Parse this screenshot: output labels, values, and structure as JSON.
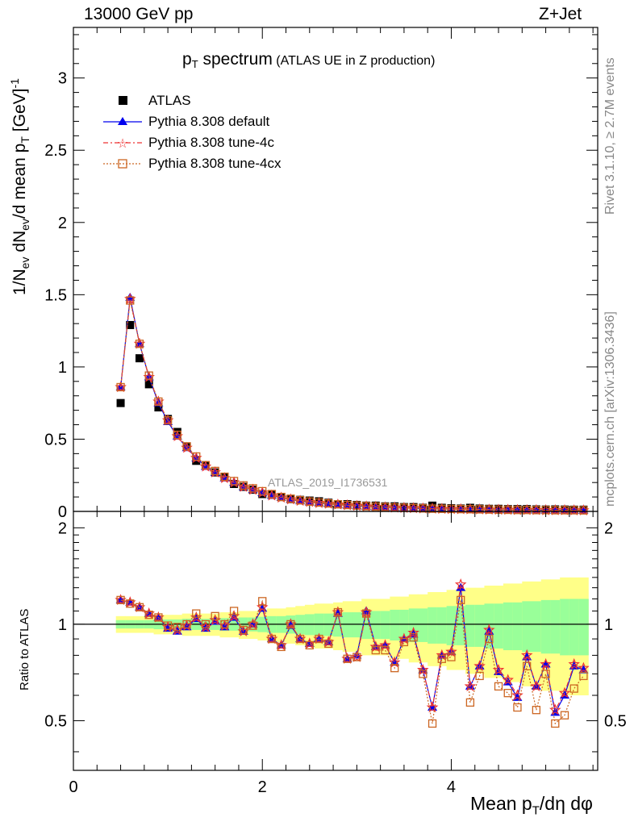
{
  "header": {
    "left": "13000 GeV pp",
    "right": "Z+Jet"
  },
  "side_labels": {
    "rivet": "Rivet 3.1.10, ≥ 2.7M events",
    "mcplots": "mcplots.cern.ch [arXiv:1306.3436]"
  },
  "plot_title": {
    "main": "p",
    "sub": "T",
    "rest": " spectrum",
    "paren": "(ATLAS UE in Z production)"
  },
  "watermark": "ATLAS_2019_I1736531",
  "y_title_main": {
    "a": "1/N",
    "b": "ev",
    "c": " dN",
    "d": "ev",
    "e": "/d mean p",
    "f": "T",
    "g": " [GeV]",
    "h": "-1"
  },
  "y_title_ratio": "Ratio to ATLAS",
  "x_title": {
    "a": "Mean p",
    "b": "T",
    "c": "/dη dφ"
  },
  "legend": [
    {
      "key": "atlas",
      "label": "ATLAS"
    },
    {
      "key": "def",
      "label": "Pythia 8.308 default"
    },
    {
      "key": "t4c",
      "label": "Pythia 8.308 tune-4c"
    },
    {
      "key": "t4cx",
      "label": "Pythia 8.308 tune-4cx"
    }
  ],
  "colors": {
    "atlas": "#000000",
    "def": "#0000ee",
    "t4c": "#ee3333",
    "t4cx": "#cc6622",
    "band_inner": "#99ff99",
    "band_outer": "#ffff88"
  },
  "chart_data": {
    "type": "line",
    "x": [
      0.5,
      0.6,
      0.7,
      0.8,
      0.9,
      1.0,
      1.1,
      1.2,
      1.3,
      1.4,
      1.5,
      1.6,
      1.7,
      1.8,
      1.9,
      2.0,
      2.1,
      2.2,
      2.3,
      2.4,
      2.5,
      2.6,
      2.7,
      2.8,
      2.9,
      3.0,
      3.1,
      3.2,
      3.3,
      3.4,
      3.5,
      3.6,
      3.7,
      3.8,
      3.9,
      4.0,
      4.1,
      4.2,
      4.3,
      4.4,
      4.5,
      4.6,
      4.7,
      4.8,
      4.9,
      5.0,
      5.1,
      5.2,
      5.3,
      5.4
    ],
    "xlim": [
      0,
      5.55
    ],
    "xticks": [
      "0",
      "2",
      "4"
    ],
    "main": {
      "ylim": [
        0,
        3.35
      ],
      "yticks": [
        "0",
        "0.5",
        "1",
        "1.5",
        "2",
        "2.5",
        "3"
      ],
      "series": [
        {
          "name": "ATLAS",
          "values": [
            0.75,
            1.29,
            1.06,
            0.88,
            0.72,
            0.64,
            0.55,
            0.45,
            0.35,
            0.32,
            0.27,
            0.24,
            0.19,
            0.17,
            0.15,
            0.12,
            0.115,
            0.1,
            0.085,
            0.08,
            0.075,
            0.07,
            0.06,
            0.05,
            0.05,
            0.045,
            0.04,
            0.04,
            0.035,
            0.035,
            0.03,
            0.03,
            0.025,
            0.04,
            0.025,
            0.022,
            0.02,
            0.025,
            0.02,
            0.018,
            0.018,
            0.016,
            0.016,
            0.016,
            0.014,
            0.013,
            0.014,
            0.013,
            0.012,
            0.012
          ]
        },
        {
          "name": "Pythia 8.308 default",
          "values": [
            0.86,
            1.48,
            1.16,
            0.93,
            0.75,
            0.62,
            0.52,
            0.44,
            0.37,
            0.31,
            0.27,
            0.23,
            0.2,
            0.17,
            0.15,
            0.13,
            0.11,
            0.095,
            0.082,
            0.072,
            0.064,
            0.058,
            0.052,
            0.047,
            0.042,
            0.038,
            0.034,
            0.031,
            0.028,
            0.026,
            0.024,
            0.022,
            0.02,
            0.018,
            0.017,
            0.016,
            0.015,
            0.014,
            0.013,
            0.012,
            0.011,
            0.01,
            0.01,
            0.009,
            0.009,
            0.008,
            0.008,
            0.008,
            0.007,
            0.007
          ]
        },
        {
          "name": "Pythia 8.308 tune-4c",
          "values": [
            0.86,
            1.47,
            1.16,
            0.93,
            0.76,
            0.63,
            0.52,
            0.44,
            0.37,
            0.31,
            0.27,
            0.23,
            0.2,
            0.17,
            0.15,
            0.13,
            0.11,
            0.095,
            0.083,
            0.073,
            0.065,
            0.058,
            0.052,
            0.047,
            0.042,
            0.038,
            0.034,
            0.031,
            0.028,
            0.026,
            0.024,
            0.022,
            0.02,
            0.019,
            0.017,
            0.016,
            0.015,
            0.014,
            0.013,
            0.012,
            0.011,
            0.011,
            0.01,
            0.009,
            0.009,
            0.008,
            0.008,
            0.008,
            0.007,
            0.007
          ]
        },
        {
          "name": "Pythia 8.308 tune-4cx",
          "values": [
            0.86,
            1.46,
            1.16,
            0.94,
            0.76,
            0.63,
            0.53,
            0.45,
            0.38,
            0.32,
            0.28,
            0.24,
            0.21,
            0.18,
            0.16,
            0.14,
            0.12,
            0.1,
            0.088,
            0.077,
            0.068,
            0.061,
            0.055,
            0.049,
            0.044,
            0.04,
            0.036,
            0.033,
            0.03,
            0.027,
            0.025,
            0.023,
            0.021,
            0.019,
            0.018,
            0.017,
            0.016,
            0.015,
            0.014,
            0.013,
            0.012,
            0.011,
            0.01,
            0.01,
            0.009,
            0.009,
            0.008,
            0.008,
            0.008,
            0.007
          ]
        }
      ]
    },
    "ratio": {
      "ylim": [
        0.35,
        2.25
      ],
      "yticks": [
        "0.5",
        "1",
        "2"
      ],
      "reference": 1,
      "band_inner": [
        0.03,
        0.03,
        0.03,
        0.03,
        0.035,
        0.035,
        0.035,
        0.04,
        0.04,
        0.04,
        0.04,
        0.045,
        0.045,
        0.05,
        0.05,
        0.055,
        0.06,
        0.06,
        0.065,
        0.07,
        0.075,
        0.08,
        0.08,
        0.085,
        0.09,
        0.09,
        0.1,
        0.1,
        0.1,
        0.11,
        0.11,
        0.12,
        0.12,
        0.13,
        0.13,
        0.14,
        0.14,
        0.15,
        0.15,
        0.16,
        0.16,
        0.17,
        0.17,
        0.18,
        0.18,
        0.19,
        0.19,
        0.2,
        0.2,
        0.2
      ],
      "band_outer": [
        0.06,
        0.06,
        0.06,
        0.06,
        0.07,
        0.07,
        0.07,
        0.08,
        0.08,
        0.08,
        0.08,
        0.09,
        0.09,
        0.1,
        0.1,
        0.11,
        0.12,
        0.12,
        0.13,
        0.14,
        0.15,
        0.16,
        0.16,
        0.17,
        0.18,
        0.18,
        0.2,
        0.2,
        0.2,
        0.22,
        0.22,
        0.24,
        0.24,
        0.26,
        0.26,
        0.28,
        0.28,
        0.3,
        0.3,
        0.32,
        0.32,
        0.34,
        0.34,
        0.36,
        0.36,
        0.38,
        0.38,
        0.4,
        0.4,
        0.4
      ],
      "series": [
        {
          "name": "Pythia 8.308 default",
          "values": [
            1.19,
            1.17,
            1.13,
            1.08,
            1.05,
            0.97,
            0.95,
            0.98,
            1.04,
            0.97,
            1.02,
            0.98,
            1.05,
            0.95,
            1.0,
            1.12,
            0.9,
            0.86,
            0.99,
            0.9,
            0.87,
            0.9,
            0.88,
            1.08,
            0.78,
            0.8,
            1.1,
            0.85,
            0.86,
            0.76,
            0.9,
            0.93,
            0.72,
            0.55,
            0.8,
            0.82,
            1.3,
            0.64,
            0.74,
            0.95,
            0.71,
            0.66,
            0.59,
            0.79,
            0.64,
            0.75,
            0.53,
            0.6,
            0.74,
            0.72
          ]
        },
        {
          "name": "Pythia 8.308 tune-4c",
          "values": [
            1.19,
            1.17,
            1.13,
            1.08,
            1.05,
            0.98,
            0.96,
            0.99,
            1.05,
            0.98,
            1.03,
            0.99,
            1.06,
            0.95,
            1.0,
            1.13,
            0.9,
            0.86,
            1.0,
            0.9,
            0.87,
            0.9,
            0.88,
            1.09,
            0.78,
            0.79,
            1.09,
            0.85,
            0.86,
            0.76,
            0.9,
            0.94,
            0.72,
            0.55,
            0.8,
            0.82,
            1.33,
            0.64,
            0.74,
            0.96,
            0.72,
            0.67,
            0.6,
            0.8,
            0.64,
            0.75,
            0.54,
            0.61,
            0.75,
            0.73
          ]
        },
        {
          "name": "Pythia 8.308 tune-4cx",
          "values": [
            1.19,
            1.16,
            1.13,
            1.07,
            1.05,
            0.99,
            0.98,
            1.0,
            1.08,
            1.0,
            1.06,
            1.0,
            1.1,
            0.96,
            0.99,
            1.18,
            0.9,
            0.85,
            1.0,
            0.9,
            0.86,
            0.9,
            0.87,
            1.09,
            0.78,
            0.79,
            1.08,
            0.83,
            0.83,
            0.73,
            0.88,
            0.91,
            0.7,
            0.49,
            0.78,
            0.79,
            1.19,
            0.57,
            0.69,
            0.9,
            0.64,
            0.61,
            0.55,
            0.74,
            0.54,
            0.7,
            0.49,
            0.52,
            0.63,
            0.69
          ]
        }
      ]
    }
  }
}
